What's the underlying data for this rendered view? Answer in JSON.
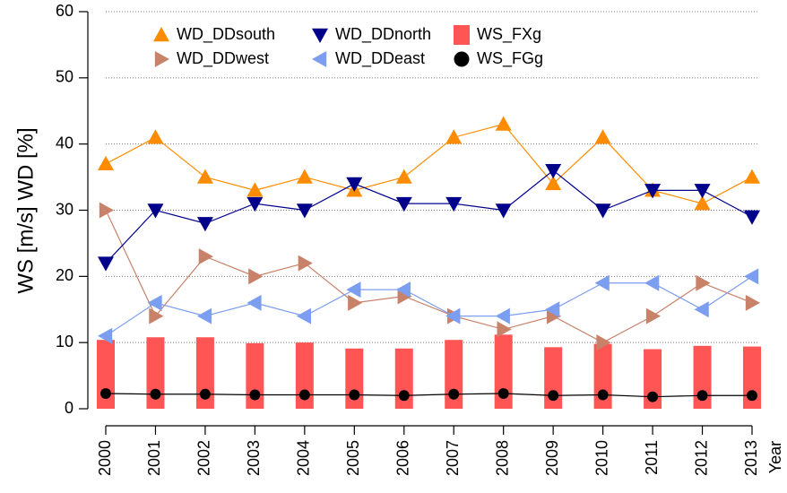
{
  "chart_data": {
    "type": "line",
    "ylabel": "WS [m/s]   WD [%]",
    "xlabel": "Year",
    "categories": [
      "2000",
      "2001",
      "2002",
      "2003",
      "2004",
      "2005",
      "2006",
      "2007",
      "2008",
      "2009",
      "2010",
      "2011",
      "2012",
      "2013"
    ],
    "ylim": [
      0,
      60
    ],
    "yticks": [
      0,
      10,
      20,
      30,
      40,
      50,
      60
    ],
    "grid": true,
    "series": [
      {
        "name": "WD_DDsouth",
        "type": "line",
        "marker": "triangle-up",
        "color": "#ff8c00",
        "values": [
          37,
          41,
          35,
          33,
          35,
          33,
          35,
          41,
          43,
          34,
          41,
          33,
          31,
          35
        ]
      },
      {
        "name": "WD_DDwest",
        "type": "line",
        "marker": "triangle-right",
        "color": "#c8826a",
        "values": [
          30,
          14,
          23,
          20,
          22,
          16,
          17,
          14,
          12,
          14,
          10,
          14,
          19,
          16
        ]
      },
      {
        "name": "WD_DDnorth",
        "type": "line",
        "marker": "triangle-down",
        "color": "#00008b",
        "values": [
          22,
          30,
          28,
          31,
          30,
          34,
          31,
          31,
          30,
          36,
          30,
          33,
          33,
          29
        ]
      },
      {
        "name": "WD_DDeast",
        "type": "line",
        "marker": "triangle-left",
        "color": "#7b9ef0",
        "values": [
          11,
          16,
          14,
          16,
          14,
          18,
          18,
          14,
          14,
          15,
          19,
          19,
          15,
          20
        ]
      },
      {
        "name": "WS_FXg",
        "type": "bar",
        "marker": "square",
        "color": "#ff5555",
        "values": [
          10.4,
          10.8,
          10.8,
          9.9,
          10,
          9.1,
          9.1,
          10.4,
          11.2,
          9.3,
          9.8,
          9,
          9.5,
          9.4
        ]
      },
      {
        "name": "WS_FGg",
        "type": "line",
        "marker": "circle",
        "color": "#000000",
        "values": [
          2.3,
          2.2,
          2.2,
          2.1,
          2.1,
          2.1,
          2.0,
          2.2,
          2.3,
          2.0,
          2.1,
          1.8,
          2.0,
          2.0
        ]
      }
    ]
  }
}
